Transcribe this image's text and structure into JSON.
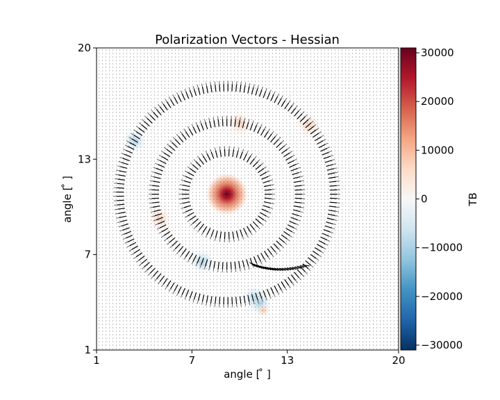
{
  "chart_data": {
    "type": "heatmap",
    "title": "Polarization Vectors - Hessian",
    "xlabel": "angle [$^\\circ$]",
    "ylabel": "angle [$^\\circ$]",
    "xlabel_text": "angle [ ̊ ]",
    "ylabel_text": "angle [ ̊ ]",
    "xlim": [
      1,
      20
    ],
    "ylim": [
      1,
      20
    ],
    "x_ticks": [
      1,
      7,
      13,
      20
    ],
    "y_ticks": [
      1,
      7,
      13,
      20
    ],
    "colorbar": {
      "label": "TB",
      "colormap": "RdBu_r",
      "range": [
        -31000,
        31000
      ],
      "ticks": [
        30000,
        20000,
        10000,
        0,
        -10000,
        -20000,
        -30000
      ],
      "tick_labels": [
        "30000",
        "20000",
        "10000",
        "0",
        "−10000",
        "−20000",
        "−30000"
      ]
    },
    "spiral": {
      "center": [
        9.2,
        10.8
      ],
      "rings": [
        {
          "radius": 6.7,
          "theta_start": 0,
          "theta_end": 360
        },
        {
          "radius": 4.5,
          "theta_start": 0,
          "theta_end": 360
        },
        {
          "radius": 2.6,
          "theta_start": 0,
          "theta_end": 360
        }
      ],
      "tail": {
        "from_angle": 318,
        "to_angle": 290,
        "end_point": [
          11.3,
          3.5
        ]
      }
    },
    "peak": {
      "x": 9.2,
      "y": 10.8,
      "value": 31000
    },
    "vector_color": "#000000",
    "background_dot_color": "#555555"
  }
}
